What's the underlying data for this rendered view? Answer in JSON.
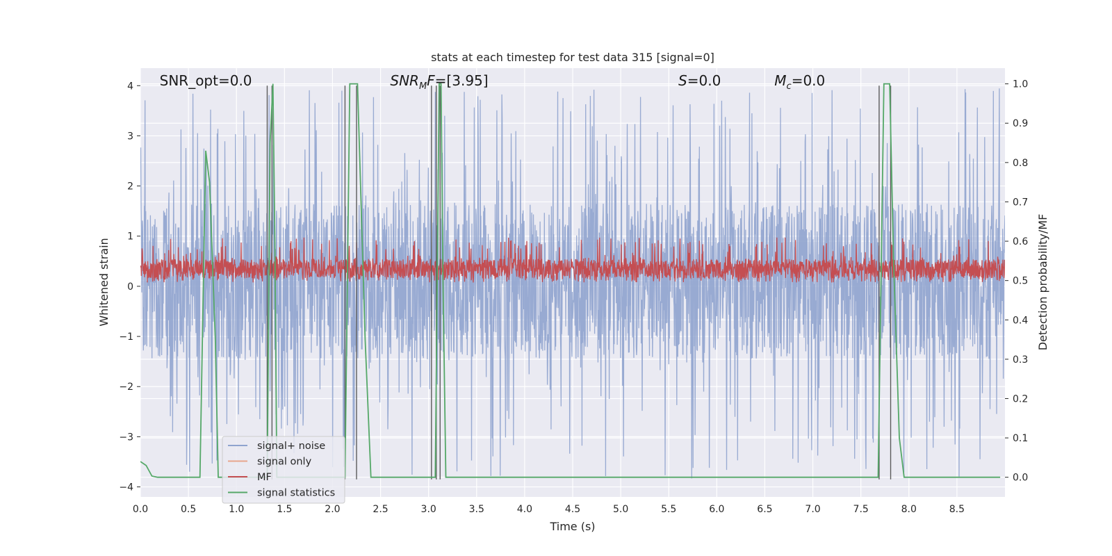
{
  "chart_data": {
    "type": "line",
    "title": "stats at each timestep for test data 315 [signal=0]",
    "xlabel": "Time (s)",
    "ylabel_left": "Whitened strain",
    "ylabel_right": "Detection probability/MF",
    "xlim": [
      0,
      9.0
    ],
    "ylim_left": [
      -4.2,
      4.35
    ],
    "ylim_right": [
      -0.05,
      1.04
    ],
    "x_ticks": [
      "0.0",
      "0.5",
      "1.0",
      "1.5",
      "2.0",
      "2.5",
      "3.0",
      "3.5",
      "4.0",
      "4.5",
      "5.0",
      "5.5",
      "6.0",
      "6.5",
      "7.0",
      "7.5",
      "8.0",
      "8.5"
    ],
    "y_ticks_left": [
      "-4",
      "-3",
      "-2",
      "-1",
      "0",
      "1",
      "2",
      "3",
      "4"
    ],
    "y_ticks_right": [
      "0.0",
      "0.1",
      "0.2",
      "0.3",
      "0.4",
      "0.5",
      "0.6",
      "0.7",
      "0.8",
      "0.9",
      "1.0"
    ],
    "grid": true,
    "legend_position": "lower-left",
    "annotations": [
      {
        "text": "SNR_opt=0.0",
        "x": 0.2
      },
      {
        "text": "SNR_MF=[3.95]",
        "x": 2.6,
        "display": {
          "pre": "SNR",
          "sub": "M",
          "post": "F=[3.95]"
        }
      },
      {
        "text": "S=0.0",
        "x": 5.6,
        "display": {
          "pre": "S",
          "sub": "",
          "post": "=0.0"
        }
      },
      {
        "text": "M_c=0.0",
        "x": 6.6,
        "display": {
          "pre": "M",
          "sub": "c",
          "post": "=0.0"
        }
      }
    ],
    "series": [
      {
        "name": "signal+ noise",
        "color": "#8fa3ce",
        "axis": "left",
        "kind": "noise",
        "envelope": {
          "core_low": -1.45,
          "core_high": 1.65,
          "peak_high": 4.0,
          "peak_low": -3.85
        }
      },
      {
        "name": "signal only",
        "color": "#e8a58c",
        "axis": "left",
        "values": []
      },
      {
        "name": "MF",
        "color": "#c44e52",
        "axis": "right",
        "kind": "noise",
        "envelope": {
          "core_low": 0.505,
          "core_high": 0.555,
          "peak_high": 0.61,
          "peak_low": 0.495
        }
      },
      {
        "name": "signal statistics",
        "color": "#55a868",
        "axis": "right",
        "x": [
          0.0,
          0.06,
          0.12,
          0.18,
          0.62,
          0.68,
          0.72,
          0.78,
          0.81,
          1.32,
          1.35,
          1.38,
          1.4,
          1.42,
          2.13,
          2.18,
          2.2,
          2.26,
          2.34,
          2.4,
          3.07,
          3.11,
          3.13,
          3.15,
          3.18,
          7.68,
          7.74,
          7.8,
          7.84,
          7.9,
          7.95,
          8.95
        ],
        "values": [
          0.04,
          0.03,
          0.003,
          0.0,
          0.0,
          0.83,
          0.75,
          0.35,
          0.0,
          0.0,
          0.85,
          1.0,
          0.6,
          0.0,
          0.0,
          1.0,
          1.0,
          1.0,
          0.35,
          0.0,
          0.0,
          1.0,
          1.0,
          0.5,
          0.0,
          0.0,
          1.0,
          1.0,
          0.55,
          0.1,
          0.0,
          0.0
        ]
      }
    ],
    "vertical_markers": {
      "color": "#5c5c5c",
      "x": [
        1.32,
        1.37,
        2.13,
        2.25,
        3.03,
        3.08,
        3.12,
        7.69,
        7.81
      ]
    }
  }
}
